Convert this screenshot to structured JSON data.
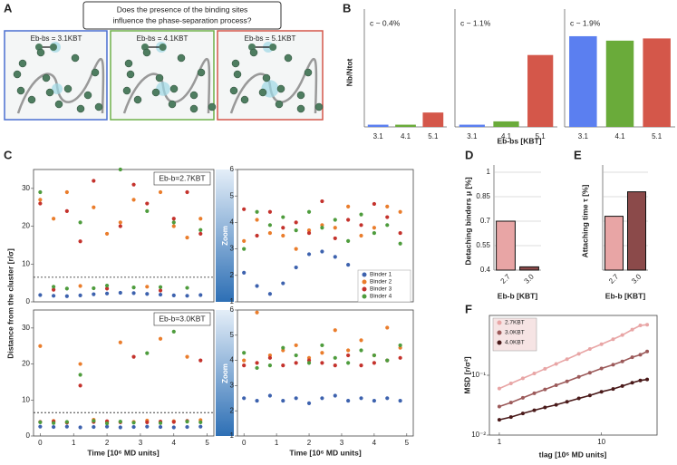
{
  "figure": {
    "panel_labels": [
      "A",
      "B",
      "C",
      "D",
      "E",
      "F"
    ]
  },
  "panel_a": {
    "question": [
      "Does the presence of the binding sites",
      "influence the phase-separation process?"
    ],
    "energies": [
      "Eb-bs = 3.1KBT",
      "Eb-bs = 4.1KBT",
      "Eb-bs = 5.1KBT"
    ]
  },
  "chart_data": [
    {
      "type": "bar",
      "ylabel": "Nb/Ntot",
      "annotation": "c ~ 0.4%",
      "categories": [
        "3.1",
        "4.1",
        "5.1"
      ],
      "values": [
        0.02,
        0.02,
        0.13
      ],
      "colors": [
        "#5b7ff0",
        "#6aab3a",
        "#d4574a"
      ],
      "ylim": [
        0,
        1
      ]
    },
    {
      "type": "bar",
      "xlabel": "Eb-bs [KBT]",
      "annotation": "c ~ 1.1%",
      "categories": [
        "3.1",
        "4.1",
        "5.1"
      ],
      "values": [
        0.02,
        0.05,
        0.65
      ],
      "colors": [
        "#5b7ff0",
        "#6aab3a",
        "#d4574a"
      ],
      "ylim": [
        0,
        1
      ]
    },
    {
      "type": "bar",
      "annotation": "c ~ 1.9%",
      "categories": [
        "3.1",
        "4.1",
        "5.1"
      ],
      "values": [
        0.82,
        0.78,
        0.8
      ],
      "colors": [
        "#5b7ff0",
        "#6aab3a",
        "#d4574a"
      ],
      "ylim": [
        0,
        1
      ]
    },
    {
      "type": "scatter",
      "ylabel": "Distance from the cluster [r/σ]",
      "annotation": "Eb-b=2.7KBT",
      "x": [
        0,
        0.4,
        0.8,
        1.2,
        1.6,
        2.0,
        2.4,
        2.8,
        3.2,
        3.6,
        4.0,
        4.4,
        4.8
      ],
      "xlim": [
        -0.2,
        5.2
      ],
      "ylim": [
        0,
        35
      ],
      "yticks": [
        0,
        10,
        20,
        30
      ],
      "hline": 6.5,
      "series": [
        {
          "color": "#3d62ae",
          "values": [
            1.8,
            1.6,
            1.5,
            1.7,
            2.0,
            2.2,
            2.4,
            2.3,
            2.1,
            1.9,
            1.7,
            1.6,
            1.8
          ]
        },
        {
          "color": "#ea7d2c",
          "values": [
            27,
            22,
            29,
            4.2,
            25,
            18,
            21,
            27,
            4.0,
            29,
            20,
            17,
            22
          ]
        },
        {
          "color": "#c4322c",
          "values": [
            26,
            3.2,
            24,
            16,
            32,
            3.5,
            20,
            31,
            26,
            3.0,
            22,
            29,
            18
          ]
        },
        {
          "color": "#4e9c3d",
          "values": [
            29,
            4.0,
            3.5,
            21,
            3.6,
            4.3,
            35,
            3.8,
            24,
            3.9,
            21,
            3.7,
            19
          ]
        }
      ]
    },
    {
      "type": "scatter",
      "annotation": "Zoom",
      "x": [
        0,
        0.4,
        0.8,
        1.2,
        1.6,
        2.0,
        2.4,
        2.8,
        3.2,
        3.6,
        4.0,
        4.4,
        4.8
      ],
      "xlim": [
        -0.2,
        5.2
      ],
      "ylim": [
        1,
        6
      ],
      "yticks": [
        1,
        2,
        3,
        4,
        5,
        6
      ],
      "series": [
        {
          "name": "Binder 1",
          "color": "#3d62ae",
          "values": [
            2.1,
            1.6,
            1.3,
            1.7,
            2.3,
            2.8,
            2.9,
            2.7,
            2.4,
            1.9,
            1.5,
            1.3,
            1.9
          ]
        },
        {
          "name": "Binder 2",
          "color": "#ea7d2c",
          "values": [
            3.3,
            4.1,
            3.6,
            3.5,
            3.0,
            3.7,
            3.9,
            3.8,
            4.6,
            3.5,
            3.8,
            4.6,
            4.4
          ]
        },
        {
          "name": "Binder 3",
          "color": "#c4322c",
          "values": [
            4.5,
            3.5,
            4.4,
            3.8,
            4.0,
            3.6,
            4.8,
            3.4,
            4.1,
            3.9,
            4.7,
            4.2,
            3.6
          ]
        },
        {
          "name": "Binder 4",
          "color": "#4e9c3d",
          "values": [
            3.0,
            4.4,
            3.9,
            4.2,
            3.7,
            4.4,
            3.8,
            4.1,
            3.3,
            4.3,
            3.6,
            3.9,
            3.2
          ]
        }
      ]
    },
    {
      "type": "scatter",
      "xlabel": "Time [10⁶ MD units]",
      "annotation": "Eb-b=3.0KBT",
      "x": [
        0,
        0.4,
        0.8,
        1.2,
        1.6,
        2.0,
        2.4,
        2.8,
        3.2,
        3.6,
        4.0,
        4.4,
        4.8
      ],
      "xlim": [
        -0.2,
        5.2
      ],
      "xticks": [
        0,
        1,
        2,
        3,
        4,
        5
      ],
      "ylim": [
        0,
        35
      ],
      "yticks": [
        0,
        10,
        20,
        30
      ],
      "hline": 6.5,
      "series": [
        {
          "color": "#3d62ae",
          "values": [
            2.6,
            2.5,
            2.6,
            2.4,
            2.5,
            2.6,
            2.4,
            2.5,
            2.6,
            2.5,
            2.4,
            2.5,
            2.6
          ]
        },
        {
          "color": "#ea7d2c",
          "values": [
            25,
            4.2,
            3.8,
            20,
            4.5,
            4.0,
            26,
            3.9,
            4.3,
            27,
            4.1,
            22,
            4.4
          ]
        },
        {
          "color": "#c4322c",
          "values": [
            3.9,
            4.0,
            3.7,
            14,
            3.9,
            4.1,
            3.8,
            22,
            3.8,
            4.0,
            3.9,
            4.2,
            21
          ]
        },
        {
          "color": "#4e9c3d",
          "values": [
            3.8,
            3.6,
            3.9,
            17,
            4.2,
            3.5,
            4.0,
            3.7,
            23,
            3.6,
            29,
            4.0,
            3.8
          ]
        }
      ]
    },
    {
      "type": "scatter",
      "xlabel": "Time [10⁶ MD units]",
      "annotation": "Zoom",
      "x": [
        0,
        0.4,
        0.8,
        1.2,
        1.6,
        2.0,
        2.4,
        2.8,
        3.2,
        3.6,
        4.0,
        4.4,
        4.8
      ],
      "xlim": [
        -0.2,
        5.2
      ],
      "xticks": [
        0,
        1,
        2,
        3,
        4,
        5
      ],
      "ylim": [
        1,
        6
      ],
      "yticks": [
        1,
        2,
        3,
        4,
        5,
        6
      ],
      "series": [
        {
          "color": "#3d62ae",
          "values": [
            2.5,
            2.4,
            2.6,
            2.4,
            2.5,
            2.3,
            2.5,
            2.6,
            2.4,
            2.5,
            2.4,
            2.5,
            2.4
          ]
        },
        {
          "color": "#ea7d2c",
          "values": [
            4.0,
            5.9,
            4.2,
            4.4,
            4.6,
            4.1,
            4.3,
            5.2,
            4.4,
            4.8,
            4.2,
            5.3,
            4.5
          ]
        },
        {
          "color": "#c4322c",
          "values": [
            3.8,
            3.9,
            4.1,
            3.8,
            3.9,
            4.0,
            3.9,
            3.8,
            4.2,
            3.8,
            3.9,
            4.0,
            4.1
          ]
        },
        {
          "color": "#4e9c3d",
          "values": [
            4.3,
            3.7,
            3.8,
            4.5,
            4.2,
            3.9,
            4.6,
            4.1,
            3.9,
            4.4,
            4.2,
            4.0,
            4.6
          ]
        }
      ]
    },
    {
      "type": "bar",
      "ylabel": "Detaching binders μ [%]",
      "xlabel": "Eb-b [KBT]",
      "categories": [
        "2.7",
        "3.0"
      ],
      "values": [
        0.7,
        0.42
      ],
      "colors": [
        "#e8a5a5",
        "#8b4a4a"
      ],
      "ylim": [
        0.4,
        1
      ],
      "yticks": [
        0.4,
        0.55,
        0.7,
        0.85,
        1
      ],
      "grid": true
    },
    {
      "type": "bar",
      "ylabel": "Attaching time τ [%]",
      "xlabel": "Eb-b [KBT]",
      "categories": [
        "2.7",
        "3.0"
      ],
      "values": [
        0.73,
        0.88
      ],
      "colors": [
        "#e8a5a5",
        "#8b4a4a"
      ],
      "ylim": [
        0.4,
        1
      ],
      "grid": true
    },
    {
      "type": "line",
      "log_scale": true,
      "ylabel": "MSD [r/σ²]",
      "xlabel": "tlag [10⁶ MD units]",
      "x": [
        1,
        1.3,
        1.7,
        2.2,
        2.8,
        3.6,
        4.6,
        6,
        7.7,
        10,
        13,
        16,
        20,
        24,
        28
      ],
      "xlim": [
        0.8,
        35
      ],
      "xticks": [
        1,
        10
      ],
      "ylim": [
        0.01,
        1
      ],
      "yticks": [
        {
          "value": 0.01,
          "label": "10⁻²"
        },
        {
          "value": 0.1,
          "label": "10⁻¹"
        }
      ],
      "series": [
        {
          "name": "2.7KBT",
          "color": "#e8a5a5",
          "values": [
            0.06,
            0.073,
            0.089,
            0.107,
            0.128,
            0.155,
            0.186,
            0.228,
            0.275,
            0.33,
            0.4,
            0.47,
            0.58,
            0.68,
            0.7
          ]
        },
        {
          "name": "3.0KBT",
          "color": "#9c5a5a",
          "values": [
            0.03,
            0.035,
            0.042,
            0.05,
            0.058,
            0.068,
            0.079,
            0.094,
            0.11,
            0.13,
            0.15,
            0.17,
            0.2,
            0.22,
            0.25
          ]
        },
        {
          "name": "4.0KBT",
          "color": "#4a1a1a",
          "values": [
            0.018,
            0.02,
            0.023,
            0.026,
            0.029,
            0.032,
            0.036,
            0.041,
            0.046,
            0.053,
            0.059,
            0.066,
            0.075,
            0.082,
            0.085
          ]
        }
      ]
    }
  ]
}
